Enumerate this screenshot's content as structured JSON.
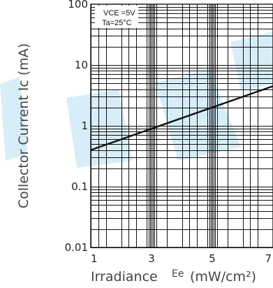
{
  "chart_data": {
    "type": "line",
    "xlabel": "Irradiance",
    "xlabel_symbol": "Ee",
    "xlabel_unit": "(mW/cm²)",
    "ylabel": "Collector Current Ic (mA)",
    "x_scale": "linear",
    "y_scale": "log",
    "xlim": [
      1,
      7
    ],
    "ylim": [
      0.01,
      100
    ],
    "x_ticks": [
      1,
      3,
      5,
      7
    ],
    "x_tick_labels": [
      "1",
      "3",
      "5",
      "7"
    ],
    "y_ticks": [
      0.01,
      0.1,
      1,
      10,
      100
    ],
    "y_tick_labels": [
      "0.01",
      "0.1",
      "1",
      "10",
      "100"
    ],
    "grid": true,
    "conditions": [
      "VCE =5V",
      "Ta=25°C"
    ],
    "series": [
      {
        "x": [
          1,
          7
        ],
        "y": [
          0.4,
          4.5
        ]
      }
    ]
  },
  "colors": {
    "watermark": "#1f9fdc",
    "line": "#111111"
  }
}
